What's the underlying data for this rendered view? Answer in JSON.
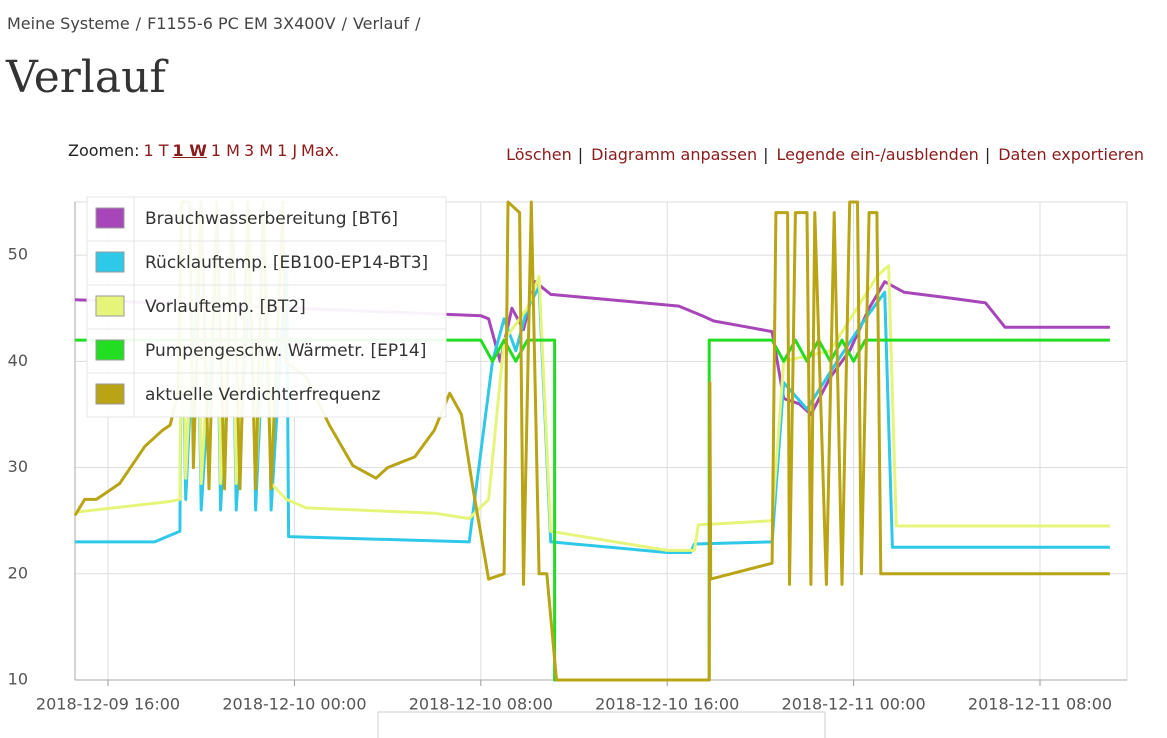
{
  "breadcrumb": [
    "Meine Systeme",
    "F1155-6 PC EM 3X400V",
    "Verlauf"
  ],
  "breadcrumb_separator": "/",
  "title": "Verlauf",
  "zoom": {
    "label": "Zoomen:",
    "options": [
      "1 T",
      "1 W",
      "1 M",
      "3 M",
      "1 J",
      "Max."
    ],
    "active": "1 W"
  },
  "actions": [
    "Löschen",
    "Diagramm anpassen",
    "Legende ein-/ausblenden",
    "Daten exportieren"
  ],
  "action_separator": "|",
  "chart_data": {
    "type": "line",
    "xlim": [
      "2018-12-09 14:35",
      "2018-12-11 11:44"
    ],
    "xticks": [
      "2018-12-09 16:00",
      "2018-12-10 00:00",
      "2018-12-10 08:00",
      "2018-12-10 16:00",
      "2018-12-11 00:00",
      "2018-12-11 08:00"
    ],
    "ylim": [
      10,
      55
    ],
    "yticks": [
      10,
      20,
      30,
      40,
      50
    ],
    "grid": true,
    "legend": "top-left",
    "series": [
      {
        "name": "Brauchwasserbereitung [BT6]",
        "color": "#a646b8",
        "x": [
          "2018-12-09 14:35",
          "2018-12-10 00:00",
          "2018-12-10 08:00",
          "2018-12-10 08:20",
          "2018-12-10 08:50",
          "2018-12-10 09:20",
          "2018-12-10 09:50",
          "2018-12-10 10:20",
          "2018-12-10 11:00",
          "2018-12-10 15:00",
          "2018-12-10 16:30",
          "2018-12-10 17:30",
          "2018-12-10 18:00",
          "2018-12-10 19:30",
          "2018-12-10 20:30",
          "2018-12-10 21:00",
          "2018-12-10 21:40",
          "2018-12-10 22:10",
          "2018-12-10 23:00",
          "2018-12-10 23:50",
          "2018-12-11 00:40",
          "2018-12-11 01:20",
          "2018-12-11 02:10",
          "2018-12-11 04:00",
          "2018-12-11 05:40",
          "2018-12-11 06:30",
          "2018-12-11 11:00"
        ],
        "values": [
          45.8,
          45,
          44.3,
          44,
          40,
          45,
          43,
          47.5,
          46.3,
          45.5,
          45.2,
          44.3,
          43.8,
          43.2,
          42.8,
          36.5,
          36,
          35,
          38.5,
          41,
          45,
          47.5,
          46.5,
          46,
          45.5,
          43.2,
          43.2
        ]
      },
      {
        "name": "Rücklauftemp. [EB100-EP14-BT3]",
        "color": "#2ec8e8",
        "x": [
          "2018-12-09 14:35",
          "2018-12-09 18:00",
          "2018-12-09 19:05",
          "2018-12-09 19:10",
          "2018-12-09 19:20",
          "2018-12-09 19:50",
          "2018-12-09 20:00",
          "2018-12-09 20:40",
          "2018-12-09 20:50",
          "2018-12-09 21:20",
          "2018-12-09 21:30",
          "2018-12-09 22:10",
          "2018-12-09 22:20",
          "2018-12-09 22:50",
          "2018-12-09 23:00",
          "2018-12-09 23:40",
          "2018-12-09 23:45",
          "2018-12-10 07:30",
          "2018-12-10 08:30",
          "2018-12-10 09:00",
          "2018-12-10 09:30",
          "2018-12-10 10:00",
          "2018-12-10 10:30",
          "2018-12-10 11:00",
          "2018-12-10 16:00",
          "2018-12-10 17:00",
          "2018-12-10 17:10",
          "2018-12-10 20:30",
          "2018-12-10 21:00",
          "2018-12-10 22:00",
          "2018-12-10 23:00",
          "2018-12-11 00:30",
          "2018-12-11 01:20",
          "2018-12-11 01:40",
          "2018-12-11 11:00"
        ],
        "values": [
          23,
          23,
          24,
          50,
          27,
          50,
          26,
          50,
          26,
          50,
          26,
          50,
          26,
          50,
          26,
          50,
          23.5,
          23,
          40,
          44,
          41,
          45,
          47,
          23,
          22,
          22,
          22.8,
          23,
          38,
          35.5,
          39,
          44,
          46.5,
          22.5,
          22.5
        ]
      },
      {
        "name": "Vorlauftemp. [BT2]",
        "color": "#e6f57a",
        "x": [
          "2018-12-09 14:35",
          "2018-12-09 18:40",
          "2018-12-09 19:05",
          "2018-12-09 19:10",
          "2018-12-09 19:20",
          "2018-12-09 19:50",
          "2018-12-09 20:00",
          "2018-12-09 20:40",
          "2018-12-09 20:50",
          "2018-12-09 21:20",
          "2018-12-09 21:30",
          "2018-12-09 22:10",
          "2018-12-09 22:20",
          "2018-12-09 22:50",
          "2018-12-09 23:00",
          "2018-12-09 23:40",
          "2018-12-10 00:30",
          "2018-12-10 06:00",
          "2018-12-10 07:30",
          "2018-12-10 08:20",
          "2018-12-10 09:00",
          "2018-12-10 10:00",
          "2018-12-10 10:30",
          "2018-12-10 11:00",
          "2018-12-10 16:00",
          "2018-12-10 17:10",
          "2018-12-10 17:20",
          "2018-12-10 20:30",
          "2018-12-10 21:00",
          "2018-12-10 23:00",
          "2018-12-11 01:00",
          "2018-12-11 01:30",
          "2018-12-11 01:50",
          "2018-12-11 11:00"
        ],
        "values": [
          25.8,
          26.8,
          27,
          54,
          29,
          54,
          28.5,
          54,
          28.5,
          54,
          28.5,
          54,
          28.5,
          54,
          28.5,
          27,
          26.2,
          25.7,
          25.2,
          27,
          42,
          45,
          48,
          24,
          22.2,
          22.2,
          24.6,
          25,
          40,
          41,
          48,
          49,
          24.5,
          24.5
        ]
      },
      {
        "name": "Pumpengeschw. Wärmetr. [EP14]",
        "color": "#22dd22",
        "x": [
          "2018-12-09 14:35",
          "2018-12-10 08:00",
          "2018-12-10 08:30",
          "2018-12-10 09:00",
          "2018-12-10 09:30",
          "2018-12-10 10:00",
          "2018-12-10 11:00",
          "2018-12-10 11:10",
          "2018-12-10 11:10",
          "2018-12-10 17:48",
          "2018-12-10 17:48",
          "2018-12-10 20:30",
          "2018-12-10 21:00",
          "2018-12-10 21:30",
          "2018-12-10 22:00",
          "2018-12-10 22:30",
          "2018-12-10 23:00",
          "2018-12-10 23:30",
          "2018-12-11 00:00",
          "2018-12-11 00:30",
          "2018-12-11 11:00"
        ],
        "values": [
          42,
          42,
          40,
          42,
          40,
          42,
          42,
          42,
          10,
          10,
          42,
          42,
          40,
          42,
          40,
          42,
          40,
          42,
          40,
          42,
          42
        ]
      },
      {
        "name": "aktuelle Verdichterfrequenz",
        "color": "#b8a414",
        "x": [
          "2018-12-09 14:35",
          "2018-12-09 15:00",
          "2018-12-09 15:30",
          "2018-12-09 16:30",
          "2018-12-09 17:35",
          "2018-12-09 18:20",
          "2018-12-09 18:40",
          "2018-12-09 19:00",
          "2018-12-09 19:10",
          "2018-12-09 19:30",
          "2018-12-09 19:40",
          "2018-12-09 20:00",
          "2018-12-09 20:20",
          "2018-12-09 20:40",
          "2018-12-09 21:00",
          "2018-12-09 21:20",
          "2018-12-09 21:40",
          "2018-12-09 22:00",
          "2018-12-09 22:20",
          "2018-12-09 22:40",
          "2018-12-09 23:00",
          "2018-12-09 23:30",
          "2018-12-09 23:36",
          "2018-12-10 00:30",
          "2018-12-10 01:30",
          "2018-12-10 02:30",
          "2018-12-10 03:30",
          "2018-12-10 04:00",
          "2018-12-10 05:10",
          "2018-12-10 06:00",
          "2018-12-10 06:40",
          "2018-12-10 07:10",
          "2018-12-10 07:40",
          "2018-12-10 08:20",
          "2018-12-10 09:00",
          "2018-12-10 09:10",
          "2018-12-10 09:40",
          "2018-12-10 09:50",
          "2018-12-10 10:10",
          "2018-12-10 10:30",
          "2018-12-10 10:50",
          "2018-12-10 11:15",
          "2018-12-10 17:48",
          "2018-12-10 17:50",
          "2018-12-10 17:52",
          "2018-12-10 20:30",
          "2018-12-10 20:40",
          "2018-12-10 21:10",
          "2018-12-10 21:15",
          "2018-12-10 21:30",
          "2018-12-10 22:00",
          "2018-12-10 22:10",
          "2018-12-10 22:20",
          "2018-12-10 22:50",
          "2018-12-10 23:10",
          "2018-12-10 23:30",
          "2018-12-10 23:50",
          "2018-12-11 00:10",
          "2018-12-11 00:20",
          "2018-12-11 00:40",
          "2018-12-11 01:00",
          "2018-12-11 01:10",
          "2018-12-11 11:00"
        ],
        "values": [
          25.5,
          27,
          27,
          28.5,
          32,
          33.5,
          34,
          37,
          55,
          55,
          30,
          55,
          28,
          55,
          28,
          55,
          28,
          55,
          28,
          55,
          28,
          55,
          40,
          38.5,
          34,
          30.2,
          29,
          30,
          31,
          33.5,
          37,
          35,
          28,
          19.5,
          20,
          55,
          54,
          19,
          55,
          20,
          20,
          10,
          10,
          38,
          19.5,
          21,
          54,
          54,
          19,
          54,
          54,
          19,
          54,
          19,
          54,
          19,
          55,
          55,
          20,
          54,
          54,
          20,
          20
        ]
      }
    ]
  }
}
